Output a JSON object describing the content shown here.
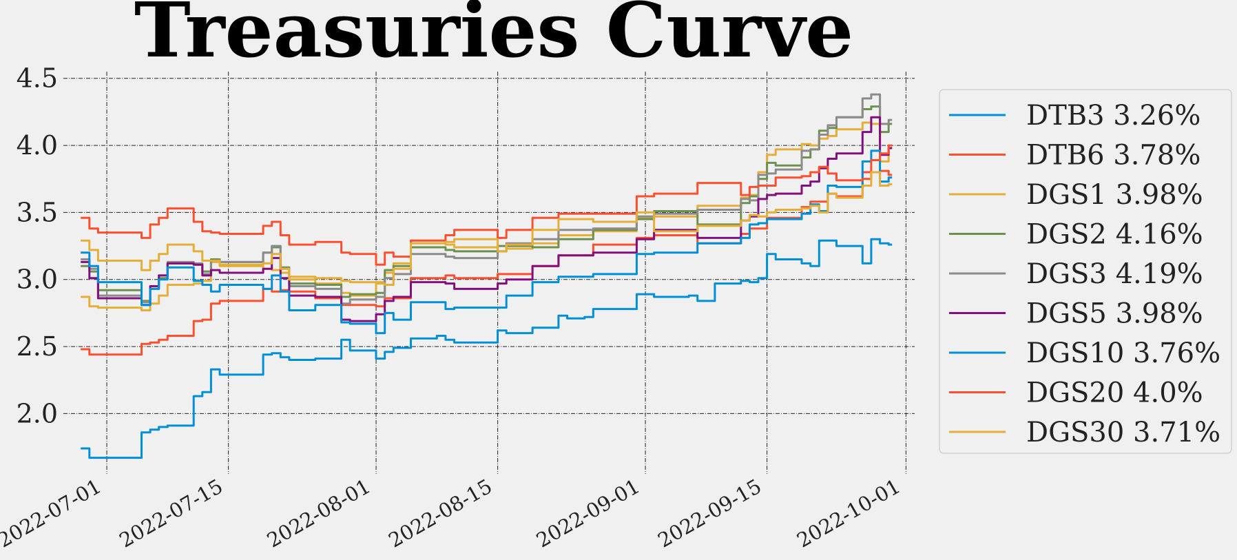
{
  "chart_data": {
    "type": "line",
    "title": "Treasuries Curve",
    "xlabel": "",
    "ylabel": "",
    "ylim": [
      1.55,
      4.55
    ],
    "xlim": [
      "2022-06-26",
      "2022-10-02"
    ],
    "yticks": [
      "2.0",
      "2.5",
      "3.0",
      "3.5",
      "4.0",
      "4.5"
    ],
    "xticks": [
      "2022-07-01",
      "2022-07-15",
      "2022-08-01",
      "2022-08-15",
      "2022-09-01",
      "2022-09-15",
      "2022-10-01"
    ],
    "grid": true,
    "legend_position": "right",
    "series": [
      {
        "name": "DTB3 3.26%",
        "color": "#008fd5",
        "x": [
          "2022-06-28",
          "2022-06-29",
          "2022-07-05",
          "2022-07-06",
          "2022-07-07",
          "2022-07-08",
          "2022-07-11",
          "2022-07-12",
          "2022-07-13",
          "2022-07-14",
          "2022-07-19",
          "2022-07-20",
          "2022-07-21",
          "2022-07-22",
          "2022-07-25",
          "2022-07-28",
          "2022-07-29",
          "2022-08-01",
          "2022-08-02",
          "2022-08-03",
          "2022-08-05",
          "2022-08-08",
          "2022-08-09",
          "2022-08-10",
          "2022-08-15",
          "2022-08-16",
          "2022-08-19",
          "2022-08-22",
          "2022-08-23",
          "2022-08-25",
          "2022-08-26",
          "2022-08-31",
          "2022-09-02",
          "2022-09-06",
          "2022-09-07",
          "2022-09-09",
          "2022-09-12",
          "2022-09-13",
          "2022-09-14",
          "2022-09-15",
          "2022-09-16",
          "2022-09-19",
          "2022-09-20",
          "2022-09-21",
          "2022-09-23",
          "2022-09-26",
          "2022-09-27",
          "2022-09-28",
          "2022-09-29"
        ],
        "y": [
          1.74,
          1.67,
          1.86,
          1.88,
          1.9,
          1.91,
          2.13,
          2.16,
          2.33,
          2.29,
          2.44,
          2.45,
          2.42,
          2.4,
          2.41,
          2.55,
          2.47,
          2.41,
          2.46,
          2.49,
          2.56,
          2.58,
          2.55,
          2.53,
          2.62,
          2.6,
          2.64,
          2.73,
          2.71,
          2.72,
          2.78,
          2.89,
          2.87,
          2.88,
          2.84,
          2.97,
          2.99,
          2.98,
          3.01,
          3.19,
          3.15,
          3.12,
          3.1,
          3.29,
          3.25,
          3.12,
          3.3,
          3.27,
          3.26
        ]
      },
      {
        "name": "DTB6 3.78%",
        "color": "#fc4f30",
        "x": [
          "2022-06-28",
          "2022-06-29",
          "2022-07-05",
          "2022-07-06",
          "2022-07-07",
          "2022-07-08",
          "2022-07-11",
          "2022-07-12",
          "2022-07-13",
          "2022-07-14",
          "2022-07-19",
          "2022-07-20",
          "2022-07-21",
          "2022-07-22",
          "2022-07-25",
          "2022-07-28",
          "2022-08-01",
          "2022-08-02",
          "2022-08-05",
          "2022-08-09",
          "2022-08-10",
          "2022-08-15",
          "2022-08-19",
          "2022-08-22",
          "2022-08-26",
          "2022-08-31",
          "2022-09-02",
          "2022-09-07",
          "2022-09-12",
          "2022-09-13",
          "2022-09-15",
          "2022-09-19",
          "2022-09-20",
          "2022-09-22",
          "2022-09-23",
          "2022-09-26",
          "2022-09-28",
          "2022-09-29"
        ],
        "y": [
          2.48,
          2.44,
          2.52,
          2.53,
          2.55,
          2.58,
          2.69,
          2.7,
          2.82,
          2.84,
          2.93,
          2.91,
          2.92,
          2.91,
          2.86,
          2.81,
          2.8,
          2.86,
          3.01,
          3.03,
          3.01,
          3.04,
          3.1,
          3.18,
          3.26,
          3.31,
          3.33,
          3.27,
          3.34,
          3.38,
          3.46,
          3.54,
          3.58,
          3.64,
          3.62,
          3.8,
          3.81,
          3.78
        ]
      },
      {
        "name": "DGS1 3.98%",
        "color": "#e5ae38",
        "x": [
          "2022-06-28",
          "2022-06-29",
          "2022-06-30",
          "2022-07-05",
          "2022-07-06",
          "2022-07-07",
          "2022-07-08",
          "2022-07-11",
          "2022-07-12",
          "2022-07-13",
          "2022-07-14",
          "2022-07-19",
          "2022-07-20",
          "2022-07-21",
          "2022-07-22",
          "2022-07-25",
          "2022-07-28",
          "2022-07-29",
          "2022-08-01",
          "2022-08-02",
          "2022-08-03",
          "2022-08-05",
          "2022-08-09",
          "2022-08-10",
          "2022-08-15",
          "2022-08-16",
          "2022-08-19",
          "2022-08-22",
          "2022-08-26",
          "2022-08-31",
          "2022-09-02",
          "2022-09-07",
          "2022-09-12",
          "2022-09-13",
          "2022-09-14",
          "2022-09-15",
          "2022-09-16",
          "2022-09-19",
          "2022-09-20",
          "2022-09-21",
          "2022-09-22",
          "2022-09-23",
          "2022-09-26",
          "2022-09-27",
          "2022-09-28",
          "2022-09-29"
        ],
        "y": [
          2.87,
          2.8,
          2.79,
          2.77,
          2.82,
          2.88,
          2.96,
          2.97,
          2.99,
          3.13,
          3.1,
          3.08,
          3.07,
          3.05,
          3.02,
          2.97,
          2.9,
          2.88,
          2.98,
          3.05,
          3.12,
          3.29,
          3.26,
          3.24,
          3.21,
          3.23,
          3.27,
          3.33,
          3.36,
          3.46,
          3.47,
          3.55,
          3.61,
          3.63,
          3.8,
          3.93,
          3.97,
          4.01,
          4.0,
          4.05,
          4.07,
          4.12,
          4.17,
          4.16,
          3.88,
          3.98
        ]
      },
      {
        "name": "DGS2 4.16%",
        "color": "#6d904f",
        "x": [
          "2022-06-28",
          "2022-06-29",
          "2022-06-30",
          "2022-07-05",
          "2022-07-06",
          "2022-07-07",
          "2022-07-08",
          "2022-07-11",
          "2022-07-12",
          "2022-07-13",
          "2022-07-14",
          "2022-07-19",
          "2022-07-20",
          "2022-07-21",
          "2022-07-22",
          "2022-07-25",
          "2022-07-28",
          "2022-07-29",
          "2022-08-01",
          "2022-08-02",
          "2022-08-03",
          "2022-08-05",
          "2022-08-09",
          "2022-08-10",
          "2022-08-15",
          "2022-08-16",
          "2022-08-19",
          "2022-08-22",
          "2022-08-26",
          "2022-08-31",
          "2022-09-02",
          "2022-09-07",
          "2022-09-12",
          "2022-09-13",
          "2022-09-14",
          "2022-09-15",
          "2022-09-16",
          "2022-09-19",
          "2022-09-20",
          "2022-09-21",
          "2022-09-22",
          "2022-09-23",
          "2022-09-26",
          "2022-09-27",
          "2022-09-28",
          "2022-09-29"
        ],
        "y": [
          3.1,
          3.06,
          2.92,
          2.84,
          2.93,
          3.01,
          3.12,
          3.11,
          3.06,
          3.15,
          3.13,
          3.2,
          3.24,
          3.09,
          2.97,
          2.96,
          2.87,
          2.89,
          2.9,
          3.07,
          3.1,
          3.24,
          3.22,
          3.21,
          3.25,
          3.25,
          3.24,
          3.3,
          3.37,
          3.45,
          3.51,
          3.41,
          3.57,
          3.62,
          3.75,
          3.87,
          3.85,
          3.91,
          3.97,
          4.11,
          4.13,
          4.21,
          4.27,
          4.29,
          4.1,
          4.16
        ]
      },
      {
        "name": "DGS3 4.19%",
        "color": "#8b8b8b",
        "x": [
          "2022-06-28",
          "2022-06-29",
          "2022-06-30",
          "2022-07-05",
          "2022-07-06",
          "2022-07-07",
          "2022-07-08",
          "2022-07-11",
          "2022-07-12",
          "2022-07-13",
          "2022-07-14",
          "2022-07-19",
          "2022-07-20",
          "2022-07-21",
          "2022-07-22",
          "2022-07-25",
          "2022-07-28",
          "2022-07-29",
          "2022-08-01",
          "2022-08-02",
          "2022-08-03",
          "2022-08-05",
          "2022-08-09",
          "2022-08-10",
          "2022-08-15",
          "2022-08-16",
          "2022-08-19",
          "2022-08-22",
          "2022-08-26",
          "2022-08-31",
          "2022-09-02",
          "2022-09-07",
          "2022-09-12",
          "2022-09-13",
          "2022-09-14",
          "2022-09-15",
          "2022-09-16",
          "2022-09-19",
          "2022-09-20",
          "2022-09-21",
          "2022-09-22",
          "2022-09-23",
          "2022-09-26",
          "2022-09-27",
          "2022-09-28",
          "2022-09-29"
        ],
        "y": [
          3.15,
          3.08,
          2.88,
          2.83,
          2.95,
          3.03,
          3.13,
          3.12,
          3.04,
          3.14,
          3.13,
          3.2,
          3.25,
          3.08,
          2.95,
          2.93,
          2.82,
          2.85,
          2.87,
          3.01,
          3.04,
          3.19,
          3.17,
          3.16,
          3.21,
          3.27,
          3.3,
          3.37,
          3.38,
          3.47,
          3.49,
          3.52,
          3.6,
          3.59,
          3.78,
          3.79,
          3.82,
          3.96,
          3.97,
          4.08,
          4.15,
          4.21,
          4.35,
          4.38,
          4.16,
          4.19
        ]
      },
      {
        "name": "DGS5 3.98%",
        "color": "#810f7c",
        "x": [
          "2022-06-28",
          "2022-06-29",
          "2022-06-30",
          "2022-07-05",
          "2022-07-06",
          "2022-07-07",
          "2022-07-08",
          "2022-07-11",
          "2022-07-12",
          "2022-07-13",
          "2022-07-14",
          "2022-07-19",
          "2022-07-20",
          "2022-07-21",
          "2022-07-22",
          "2022-07-25",
          "2022-07-28",
          "2022-07-29",
          "2022-08-01",
          "2022-08-02",
          "2022-08-03",
          "2022-08-05",
          "2022-08-09",
          "2022-08-10",
          "2022-08-15",
          "2022-08-16",
          "2022-08-19",
          "2022-08-22",
          "2022-08-26",
          "2022-08-31",
          "2022-09-02",
          "2022-09-07",
          "2022-09-12",
          "2022-09-13",
          "2022-09-14",
          "2022-09-15",
          "2022-09-16",
          "2022-09-19",
          "2022-09-20",
          "2022-09-21",
          "2022-09-22",
          "2022-09-23",
          "2022-09-26",
          "2022-09-27",
          "2022-09-28",
          "2022-09-29"
        ],
        "y": [
          3.13,
          3.01,
          2.86,
          2.81,
          2.95,
          3.03,
          3.12,
          3.11,
          3.03,
          3.07,
          3.05,
          3.08,
          3.16,
          3.01,
          2.88,
          2.87,
          2.7,
          2.69,
          2.74,
          2.84,
          2.87,
          2.98,
          2.97,
          2.93,
          2.97,
          3.0,
          3.1,
          3.18,
          3.2,
          3.3,
          3.37,
          3.31,
          3.44,
          3.47,
          3.6,
          3.63,
          3.64,
          3.7,
          3.73,
          3.83,
          3.9,
          3.94,
          4.1,
          4.21,
          3.93,
          3.98
        ]
      },
      {
        "name": "DGS10 3.76%",
        "color": "#008fd5",
        "x": [
          "2022-06-28",
          "2022-06-29",
          "2022-06-30",
          "2022-07-05",
          "2022-07-06",
          "2022-07-07",
          "2022-07-08",
          "2022-07-11",
          "2022-07-12",
          "2022-07-13",
          "2022-07-14",
          "2022-07-19",
          "2022-07-20",
          "2022-07-21",
          "2022-07-22",
          "2022-07-25",
          "2022-07-28",
          "2022-07-29",
          "2022-08-01",
          "2022-08-02",
          "2022-08-03",
          "2022-08-05",
          "2022-08-09",
          "2022-08-10",
          "2022-08-15",
          "2022-08-16",
          "2022-08-19",
          "2022-08-22",
          "2022-08-26",
          "2022-08-31",
          "2022-09-02",
          "2022-09-07",
          "2022-09-12",
          "2022-09-13",
          "2022-09-14",
          "2022-09-15",
          "2022-09-16",
          "2022-09-19",
          "2022-09-20",
          "2022-09-21",
          "2022-09-22",
          "2022-09-23",
          "2022-09-26",
          "2022-09-27",
          "2022-09-28",
          "2022-09-29"
        ],
        "y": [
          3.2,
          3.1,
          2.98,
          2.81,
          2.93,
          3.0,
          3.09,
          2.99,
          2.96,
          2.91,
          2.96,
          2.93,
          3.03,
          2.91,
          2.77,
          2.81,
          2.68,
          2.67,
          2.6,
          2.75,
          2.7,
          2.83,
          2.78,
          2.79,
          2.79,
          2.88,
          2.98,
          3.02,
          3.04,
          3.19,
          3.2,
          3.27,
          3.31,
          3.41,
          3.42,
          3.45,
          3.45,
          3.49,
          3.56,
          3.51,
          3.7,
          3.69,
          3.88,
          3.96,
          3.73,
          3.76
        ]
      },
      {
        "name": "DGS20 4.0%",
        "color": "#fc4f30",
        "x": [
          "2022-06-28",
          "2022-06-29",
          "2022-06-30",
          "2022-07-05",
          "2022-07-06",
          "2022-07-07",
          "2022-07-08",
          "2022-07-11",
          "2022-07-12",
          "2022-07-13",
          "2022-07-14",
          "2022-07-19",
          "2022-07-20",
          "2022-07-21",
          "2022-07-22",
          "2022-07-25",
          "2022-07-28",
          "2022-07-29",
          "2022-08-01",
          "2022-08-02",
          "2022-08-03",
          "2022-08-05",
          "2022-08-09",
          "2022-08-10",
          "2022-08-15",
          "2022-08-16",
          "2022-08-19",
          "2022-08-22",
          "2022-08-26",
          "2022-08-31",
          "2022-09-02",
          "2022-09-07",
          "2022-09-12",
          "2022-09-13",
          "2022-09-14",
          "2022-09-15",
          "2022-09-16",
          "2022-09-19",
          "2022-09-20",
          "2022-09-21",
          "2022-09-22",
          "2022-09-23",
          "2022-09-26",
          "2022-09-27",
          "2022-09-28",
          "2022-09-29"
        ],
        "y": [
          3.46,
          3.38,
          3.35,
          3.31,
          3.41,
          3.46,
          3.53,
          3.43,
          3.36,
          3.35,
          3.34,
          3.4,
          3.43,
          3.33,
          3.26,
          3.28,
          3.2,
          3.19,
          3.11,
          3.2,
          3.17,
          3.29,
          3.33,
          3.37,
          3.31,
          3.37,
          3.46,
          3.49,
          3.49,
          3.62,
          3.64,
          3.72,
          3.63,
          3.69,
          3.7,
          3.7,
          3.76,
          3.77,
          3.8,
          3.84,
          3.79,
          3.74,
          3.75,
          3.89,
          3.94,
          4.0
        ]
      },
      {
        "name": "DGS30 3.71%",
        "color": "#e5ae38",
        "x": [
          "2022-06-28",
          "2022-06-29",
          "2022-06-30",
          "2022-07-05",
          "2022-07-06",
          "2022-07-07",
          "2022-07-08",
          "2022-07-11",
          "2022-07-12",
          "2022-07-13",
          "2022-07-14",
          "2022-07-19",
          "2022-07-20",
          "2022-07-21",
          "2022-07-22",
          "2022-07-25",
          "2022-07-28",
          "2022-07-29",
          "2022-08-01",
          "2022-08-02",
          "2022-08-03",
          "2022-08-05",
          "2022-08-09",
          "2022-08-10",
          "2022-08-15",
          "2022-08-16",
          "2022-08-19",
          "2022-08-22",
          "2022-08-26",
          "2022-08-31",
          "2022-09-02",
          "2022-09-07",
          "2022-09-12",
          "2022-09-13",
          "2022-09-14",
          "2022-09-15",
          "2022-09-16",
          "2022-09-19",
          "2022-09-20",
          "2022-09-21",
          "2022-09-22",
          "2022-09-23",
          "2022-09-26",
          "2022-09-27",
          "2022-09-28",
          "2022-09-29"
        ],
        "y": [
          3.29,
          3.22,
          3.14,
          3.07,
          3.14,
          3.19,
          3.26,
          3.21,
          3.14,
          3.14,
          3.11,
          3.12,
          3.19,
          3.08,
          3.0,
          3.01,
          2.99,
          2.98,
          2.97,
          2.96,
          3.08,
          3.27,
          3.28,
          3.3,
          3.21,
          3.26,
          3.37,
          3.45,
          3.43,
          3.5,
          3.36,
          3.4,
          3.44,
          3.48,
          3.47,
          3.5,
          3.52,
          3.53,
          3.55,
          3.5,
          3.64,
          3.61,
          3.7,
          3.8,
          3.7,
          3.71
        ]
      }
    ]
  }
}
